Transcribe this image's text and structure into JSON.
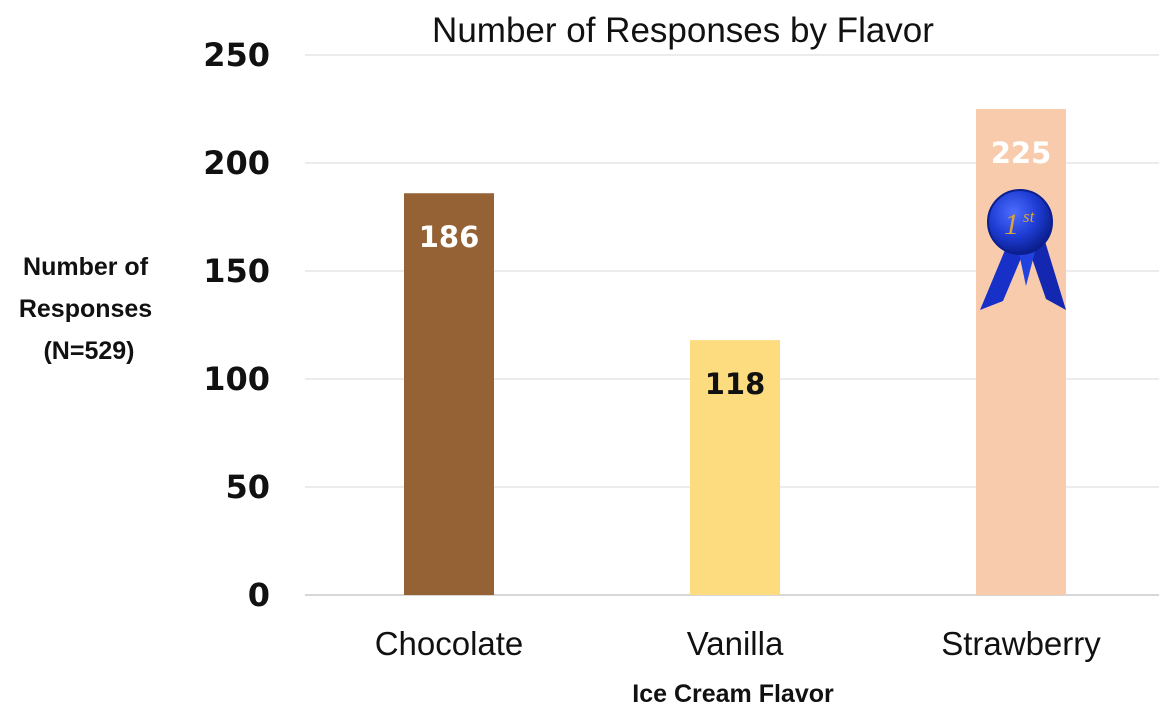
{
  "chart_data": {
    "type": "bar",
    "title": "Number of Responses by Flavor",
    "xlabel": "Ice Cream Flavor",
    "ylabel": [
      "Number of",
      "Responses",
      "(N=529)"
    ],
    "categories": [
      "Chocolate",
      "Vanilla",
      "Strawberry"
    ],
    "values": [
      186,
      118,
      225
    ],
    "ylim": [
      0,
      250
    ],
    "yticks": [
      0,
      50,
      100,
      150,
      200,
      250
    ],
    "grid": true,
    "bar_colors": [
      "#956235",
      "#fddc80",
      "#f8cbad"
    ],
    "label_colors": [
      "#ffffff",
      "#111111",
      "#ffffff"
    ],
    "annotation": {
      "category": "Strawberry",
      "icon": "first-place-ribbon-icon",
      "text_main": "1",
      "text_sup": "st",
      "colors": {
        "ribbon": "#1730c8",
        "medal_light": "#3a5cf0",
        "medal_dark": "#0b1f8f",
        "text": "#d9a43a"
      }
    }
  }
}
